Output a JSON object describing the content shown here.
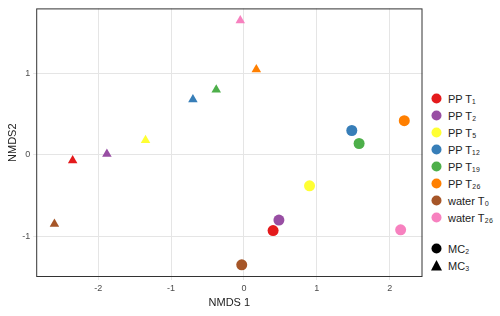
{
  "chart_data": {
    "type": "scatter",
    "x_label": "NMDS 1",
    "y_label": "NMDS2",
    "xlim": [
      -2.85,
      2.45
    ],
    "xticks": [
      -2,
      -1,
      0,
      1,
      2
    ],
    "ylim": [
      -1.5,
      1.8
    ],
    "yticks": [
      -1,
      0,
      1
    ],
    "grid": true,
    "legend": "right",
    "shapes": [
      {
        "name": "MC₂",
        "marker": "circle"
      },
      {
        "name": "MC₃",
        "marker": "triangle"
      }
    ],
    "series": [
      {
        "name": "PP T₁",
        "color": "#e41a1c",
        "points": [
          {
            "shape": "MC₂",
            "x": 0.4,
            "y": -0.93
          },
          {
            "shape": "MC₃",
            "x": -2.35,
            "y": -0.07
          }
        ]
      },
      {
        "name": "PP T₂",
        "color": "#984ea3",
        "points": [
          {
            "shape": "MC₂",
            "x": 0.48,
            "y": -0.8
          },
          {
            "shape": "MC₃",
            "x": -1.88,
            "y": 0.01
          }
        ]
      },
      {
        "name": "PP T₅",
        "color": "#ffff33",
        "points": [
          {
            "shape": "MC₂",
            "x": 0.9,
            "y": -0.38
          },
          {
            "shape": "MC₃",
            "x": -1.35,
            "y": 0.18
          }
        ]
      },
      {
        "name": "PP T₁₂",
        "color": "#377eb8",
        "points": [
          {
            "shape": "MC₂",
            "x": 1.48,
            "y": 0.3
          },
          {
            "shape": "MC₃",
            "x": -0.7,
            "y": 0.68
          }
        ]
      },
      {
        "name": "PP T₁₉",
        "color": "#4daf4a",
        "points": [
          {
            "shape": "MC₂",
            "x": 1.58,
            "y": 0.14
          },
          {
            "shape": "MC₃",
            "x": -0.38,
            "y": 0.8
          }
        ]
      },
      {
        "name": "PP T₂₆",
        "color": "#ff7f00",
        "points": [
          {
            "shape": "MC₂",
            "x": 2.2,
            "y": 0.42
          },
          {
            "shape": "MC₃",
            "x": 0.17,
            "y": 1.05
          }
        ]
      },
      {
        "name": "water T₀",
        "color": "#a65628",
        "points": [
          {
            "shape": "MC₂",
            "x": -0.03,
            "y": -1.35
          },
          {
            "shape": "MC₃",
            "x": -2.6,
            "y": -0.85
          }
        ]
      },
      {
        "name": "water T₂₆",
        "color": "#f781bf",
        "points": [
          {
            "shape": "MC₂",
            "x": 2.15,
            "y": -0.92
          },
          {
            "shape": "MC₃",
            "x": -0.05,
            "y": 1.65
          }
        ]
      }
    ]
  }
}
